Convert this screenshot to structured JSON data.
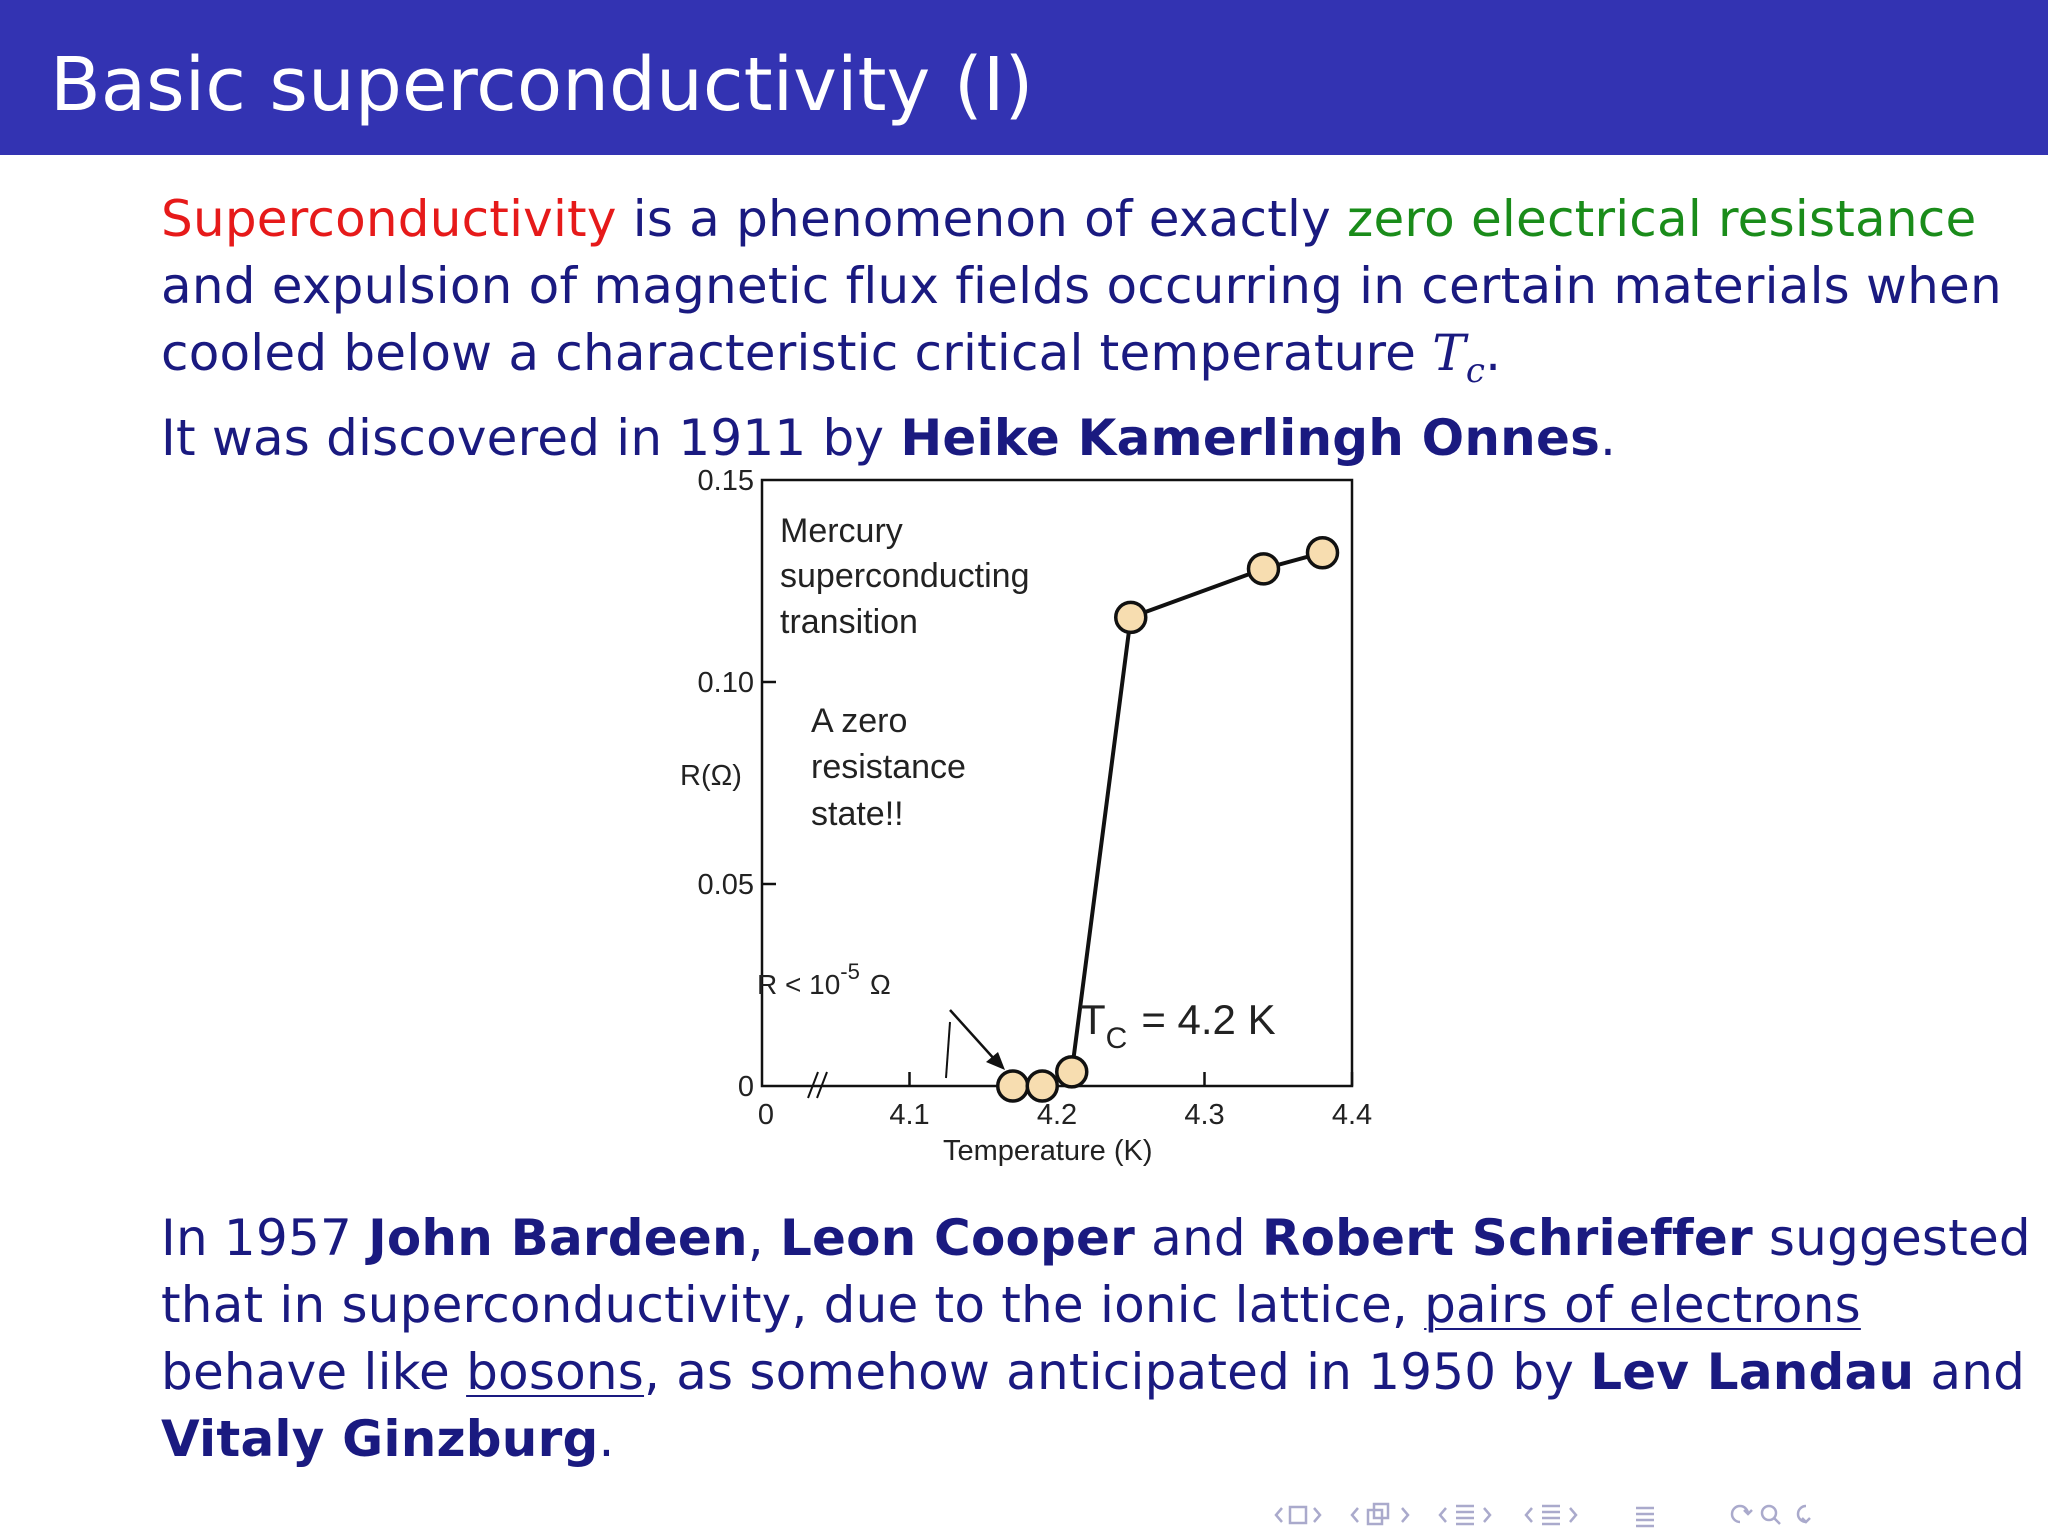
{
  "slide": {
    "title": "Basic superconductivity (I)"
  },
  "intro": {
    "term": "Superconductivity",
    "t1": " is a phenomenon of exactly ",
    "green_phrase": "zero electrical resistance",
    "line2": "and expulsion of magnetic flux fields occurring in certain materials when",
    "line3_pre": "cooled below a characteristic critical temperature ",
    "tc_T": "T",
    "tc_c": "c",
    "line3_post": ".",
    "line4_pre": "It was discovered in 1911 by ",
    "discoverer": "Heike Kamerlingh Onnes",
    "line4_post": "."
  },
  "figure": {
    "annotation_title": [
      "Mercury",
      "superconducting",
      "transition"
    ],
    "annotation_zero": [
      "A zero",
      "resistance",
      "state!!"
    ],
    "r_limit_text": "R < 10",
    "r_limit_exp": "-5",
    "r_limit_unit": "Ω",
    "tc_T": "T",
    "tc_sub": "C",
    "tc_value": "= 4.2 K",
    "y_axis_label": "R(Ω)",
    "x_axis_label": "Temperature (K)",
    "x_origin_label": "0",
    "y_origin_label": "0"
  },
  "chart_data": {
    "type": "line",
    "xlabel": "Temperature (K)",
    "ylabel": "R(Ω)",
    "xlim": [
      4.0,
      4.4
    ],
    "ylim": [
      0,
      0.15
    ],
    "x_ticks": [
      "4.1",
      "4.2",
      "4.3",
      "4.4"
    ],
    "y_ticks": [
      "0.15",
      "0.10",
      "0.05",
      "0"
    ],
    "x_tick_values": [
      4.1,
      4.2,
      4.3,
      4.4
    ],
    "y_tick_values": [
      0.15,
      0.1,
      0.05,
      0
    ],
    "series": [
      {
        "x": [
          4.17,
          4.19,
          4.21,
          4.25,
          4.34,
          4.38
        ],
        "y": [
          0.0,
          0.0,
          0.0035,
          0.116,
          0.128,
          0.132
        ]
      }
    ],
    "marker_fill": "#f7ddb0",
    "grid": false
  },
  "outro": {
    "l1_pre": "In 1957 ",
    "name1": "John Bardeen",
    "l1_sep1": ", ",
    "name2": "Leon Cooper",
    "l1_sep2": " and ",
    "name3": "Robert Schrieffer",
    "l1_post": " suggested",
    "l2_pre": "that in superconductivity, due to the ionic lattice, ",
    "l2_link": "pairs of electrons",
    "l3_pre": "behave like ",
    "l3_link": "bosons",
    "l3_mid": ", as somehow anticipated in 1950 by ",
    "name4": "Lev Landau",
    "l3_post": " and",
    "name5": "Vitaly Ginzburg",
    "l4_post": "."
  },
  "colors": {
    "title_bar": "#3333b2",
    "body_text": "#1a1a80",
    "alert": "#e61a1a",
    "example": "#1a8c1a",
    "nav": "#aaaacc"
  },
  "nav_icons": [
    "left-arrow",
    "frame-icon",
    "right-arrow",
    "left-arrow",
    "subsection-icon",
    "right-arrow",
    "left-arrow",
    "section-icon",
    "right-arrow",
    "left-arrow",
    "section-icon",
    "right-arrow",
    "align-icon",
    "loop-icon",
    "search-icon"
  ]
}
